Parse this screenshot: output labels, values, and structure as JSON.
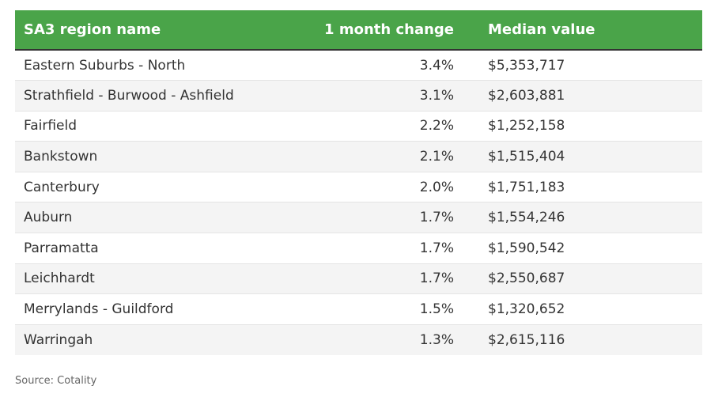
{
  "chart_data": {
    "type": "table",
    "columns": [
      "SA3 region name",
      "1 month change",
      "Median value"
    ],
    "rows": [
      [
        "Eastern Suburbs - North",
        "3.4%",
        "$5,353,717"
      ],
      [
        "Strathfield - Burwood - Ashfield",
        "3.1%",
        "$2,603,881"
      ],
      [
        "Fairfield",
        "2.2%",
        "$1,252,158"
      ],
      [
        "Bankstown",
        "2.1%",
        "$1,515,404"
      ],
      [
        "Canterbury",
        "2.0%",
        "$1,751,183"
      ],
      [
        "Auburn",
        "1.7%",
        "$1,554,246"
      ],
      [
        "Parramatta",
        "1.7%",
        "$1,590,542"
      ],
      [
        "Leichhardt",
        "1.7%",
        "$2,550,687"
      ],
      [
        "Merrylands - Guildford",
        "1.5%",
        "$1,320,652"
      ],
      [
        "Warringah",
        "1.3%",
        "$2,615,116"
      ]
    ],
    "source": "Source: Cotality"
  },
  "colors": {
    "header_bg": "#4aa449",
    "header_text": "#ffffff",
    "row_alt": "#f4f4f4"
  }
}
